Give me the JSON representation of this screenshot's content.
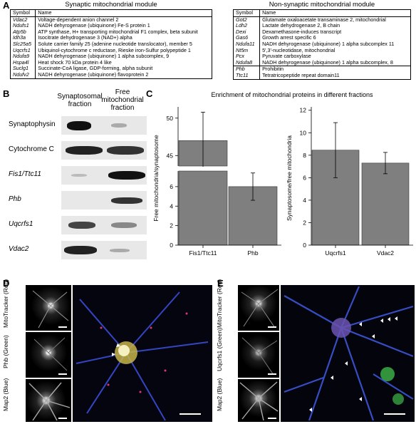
{
  "panels": {
    "A": "A",
    "B": "B",
    "C": "C",
    "D": "D",
    "E": "E"
  },
  "tableA_left": {
    "title": "Synaptic mitochondrial module",
    "header": [
      "Symbol",
      "Name"
    ],
    "rows": [
      [
        "Vdac2",
        "Voltage-dependent anion channel 2"
      ],
      [
        "Ndufs1",
        "NADH dehyrogenase (ubiquinone) Fe-S protein 1"
      ],
      [
        "Atp5b",
        "ATP synthase, H+ transporting mitochondrial F1 complex, beta subunit"
      ],
      [
        "Idh3a",
        "Isocitrate dehydrogenase 3 (NAD+) alpha"
      ],
      [
        "Slc25a5",
        "Solute carrier family 25 (adenine nucleotide translocator), member 5"
      ],
      [
        "Uqcrfs1",
        "Ubiquinol-cytochrome c reductase, Rieske iron-Sulfur polypeptide 1"
      ],
      [
        "Ndufa9",
        "NADH dehyrogenase (ubiquinone) 1 alpha subcomplex, 9"
      ],
      [
        "Hspa4l",
        "Heat shock 70 kDa protein 4 like"
      ],
      [
        "Suclg1",
        "Succinate-CoA ligase, GDP-forming, alpha subunit"
      ],
      [
        "Ndufv2",
        "NADH dehyrogenase (ubiquinone) flavoprotein 2"
      ]
    ]
  },
  "tableA_right": {
    "title": "Non-synaptic mitochondrial module",
    "header": [
      "Symbol",
      "Name"
    ],
    "rows": [
      [
        "Got2",
        "Glutamate oxaloacetate transaminase 2, mitochondrial"
      ],
      [
        "Ldh2",
        "Lactate dehydrogenase 2, B chain"
      ],
      [
        "Dexi",
        "Dexamethasone-induces transcript"
      ],
      [
        "Gas6",
        "Growth arrest specific 6"
      ],
      [
        "Ndufa11",
        "NADH dehyrogenase (ubiquinone) 1 alpha subcomplex 11"
      ],
      [
        "Nt5m",
        "5',3'-nucleotidase, mitochondrial"
      ],
      [
        "Pcx",
        "Pyruvate carboxylase"
      ],
      [
        "Ndufa8",
        "NADH dehyrogenase (ubiquinone) 1 alpha subcomplex, 8"
      ]
    ],
    "rows2": [
      [
        "Phb",
        "Prohibitin"
      ],
      [
        "Ttc11",
        "Tetratricopeptide repeat domain11"
      ]
    ]
  },
  "western": {
    "col1": "Synaptosomal fraction",
    "col2": "Free mitochondrial fraction",
    "rows": [
      {
        "label": "Synaptophysin",
        "italic": false
      },
      {
        "label": "Cytochrome C",
        "italic": false
      },
      {
        "label": "Fis1/Ttc11",
        "italic": true
      },
      {
        "label": "Phb",
        "italic": true
      },
      {
        "label": "Uqcrfs1",
        "italic": true
      },
      {
        "label": "Vdac2",
        "italic": true
      }
    ]
  },
  "chart_data": [
    {
      "type": "bar",
      "title": "Enrichment of mitochondrial proteins in different fractions",
      "categories": [
        "Fis1/Ttc11",
        "Phb"
      ],
      "values": [
        47,
        6.0
      ],
      "errors": [
        3.8,
        1.4
      ],
      "ylabel": "Free mitochondria/synaptosome",
      "axis_break": true,
      "yticks_lower": [
        0,
        2,
        4,
        6
      ],
      "yticks_upper": [
        45,
        50
      ],
      "ylim_lower": [
        0,
        7.6
      ],
      "ylim_upper": [
        43.6,
        51.5
      ],
      "bar_color": "#7f7f7f"
    },
    {
      "type": "bar",
      "categories": [
        "Uqcrfs1",
        "Vdac2"
      ],
      "values": [
        8.45,
        7.3
      ],
      "errors": [
        2.45,
        0.95
      ],
      "ylabel": "Synaptosome/free mitochondria",
      "yticks": [
        0,
        2,
        4,
        6,
        8,
        10,
        12
      ],
      "ylim": [
        0,
        12.3
      ],
      "bar_color": "#7f7f7f"
    }
  ],
  "panelD": {
    "labels": [
      "MitoTracker (Red)",
      "Phb (Green)",
      "Map2 (Blue)"
    ]
  },
  "panelE": {
    "labels": [
      "MitoTracker (Red)",
      "Uqcrfs1 (Green)",
      "Map2 (Blue)"
    ]
  }
}
